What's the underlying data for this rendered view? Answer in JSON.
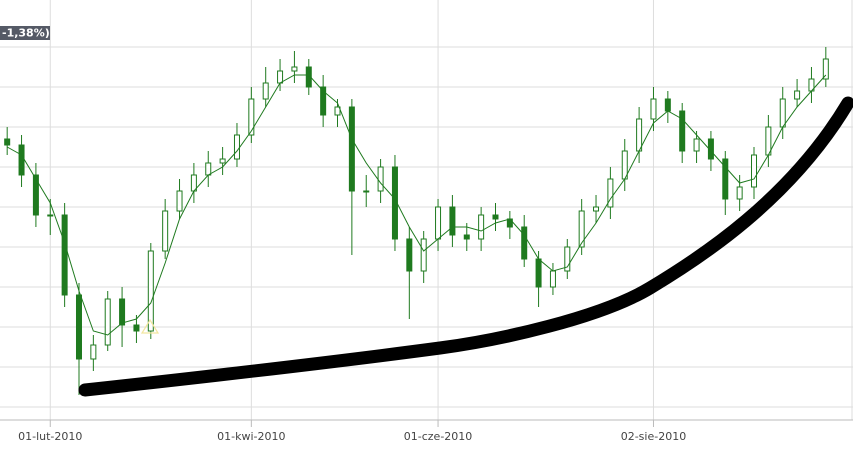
{
  "chart_data": {
    "type": "candlestick",
    "badge": "-1,38%)",
    "categories": [
      null,
      null,
      null,
      "01-lut-2010",
      null,
      null,
      null,
      null,
      null,
      null,
      null,
      null,
      null,
      null,
      null,
      null,
      null,
      "01-kwi-2010",
      null,
      null,
      null,
      null,
      null,
      null,
      null,
      null,
      null,
      null,
      null,
      null,
      "01-cze-2010",
      null,
      null,
      null,
      null,
      null,
      null,
      null,
      null,
      null,
      null,
      null,
      null,
      null,
      null,
      "02-sie-2010",
      null,
      null,
      null,
      null,
      null,
      null,
      null,
      null,
      null,
      null,
      null,
      null
    ],
    "open": [
      72,
      70.5,
      63,
      53,
      53,
      33,
      17,
      20.5,
      32,
      25.5,
      24,
      44,
      54,
      59,
      63,
      66,
      67,
      73,
      82,
      86,
      89,
      90,
      85,
      78,
      80,
      59,
      59,
      65,
      47,
      39,
      47,
      55,
      48,
      47,
      53,
      52,
      50,
      42,
      35,
      39,
      45,
      54,
      55,
      62,
      69,
      77,
      82,
      79,
      69,
      72,
      67,
      57,
      60,
      68,
      75,
      82,
      84,
      87
    ],
    "high": [
      75,
      73,
      66,
      57,
      56,
      36,
      23,
      34,
      35,
      28,
      46,
      57,
      62,
      66,
      69,
      70,
      76,
      85,
      90,
      92,
      94,
      92,
      88,
      82,
      82,
      63,
      67,
      68,
      50,
      49,
      57,
      58,
      51,
      55,
      56,
      54,
      53,
      44,
      41,
      47,
      57,
      58,
      65,
      72,
      80,
      85,
      84,
      81,
      74,
      74,
      69,
      63,
      70,
      78,
      85,
      87,
      90,
      95
    ],
    "low": [
      68,
      60,
      50,
      48,
      30,
      8,
      14,
      19,
      20,
      21,
      22,
      42,
      52,
      56,
      60,
      63,
      65,
      71,
      80,
      84,
      86,
      83,
      75,
      75,
      43,
      55,
      56,
      44,
      27,
      36,
      44,
      45,
      44,
      44,
      49,
      47,
      40,
      30,
      33,
      37,
      43,
      51,
      52,
      59,
      66,
      74,
      76,
      66,
      66,
      64,
      53,
      54,
      57,
      65,
      72,
      80,
      81,
      85
    ],
    "close": [
      70.5,
      63,
      53,
      53,
      33,
      17,
      20.5,
      32,
      25.5,
      24,
      44,
      54,
      59,
      63,
      66,
      67,
      73,
      82,
      86,
      89,
      90,
      85,
      78,
      80,
      59,
      59,
      65,
      47,
      39,
      47,
      55,
      48,
      47,
      53,
      52,
      50,
      42,
      35,
      39,
      45,
      54,
      55,
      62,
      69,
      77,
      82,
      79,
      69,
      72,
      67,
      57,
      60,
      68,
      75,
      82,
      84,
      87,
      92
    ],
    "moving_average": [
      70,
      68,
      62,
      56,
      46,
      34,
      24,
      23,
      26,
      27,
      31,
      41,
      52,
      59,
      63,
      65,
      69,
      74,
      80,
      86,
      88,
      88,
      84,
      81,
      72,
      66,
      61,
      57,
      50,
      44,
      47,
      50,
      50,
      49,
      51,
      52,
      48,
      42,
      39,
      40,
      46,
      51,
      57,
      62,
      69,
      76,
      79,
      77,
      73,
      69,
      65,
      61,
      62,
      68,
      75,
      80,
      84,
      88
    ],
    "color": "#1f7a1f",
    "ylim": [
      0,
      100
    ],
    "yticks": [
      5,
      15,
      25,
      35,
      45,
      55,
      65,
      75,
      85,
      95
    ],
    "grid": true
  }
}
